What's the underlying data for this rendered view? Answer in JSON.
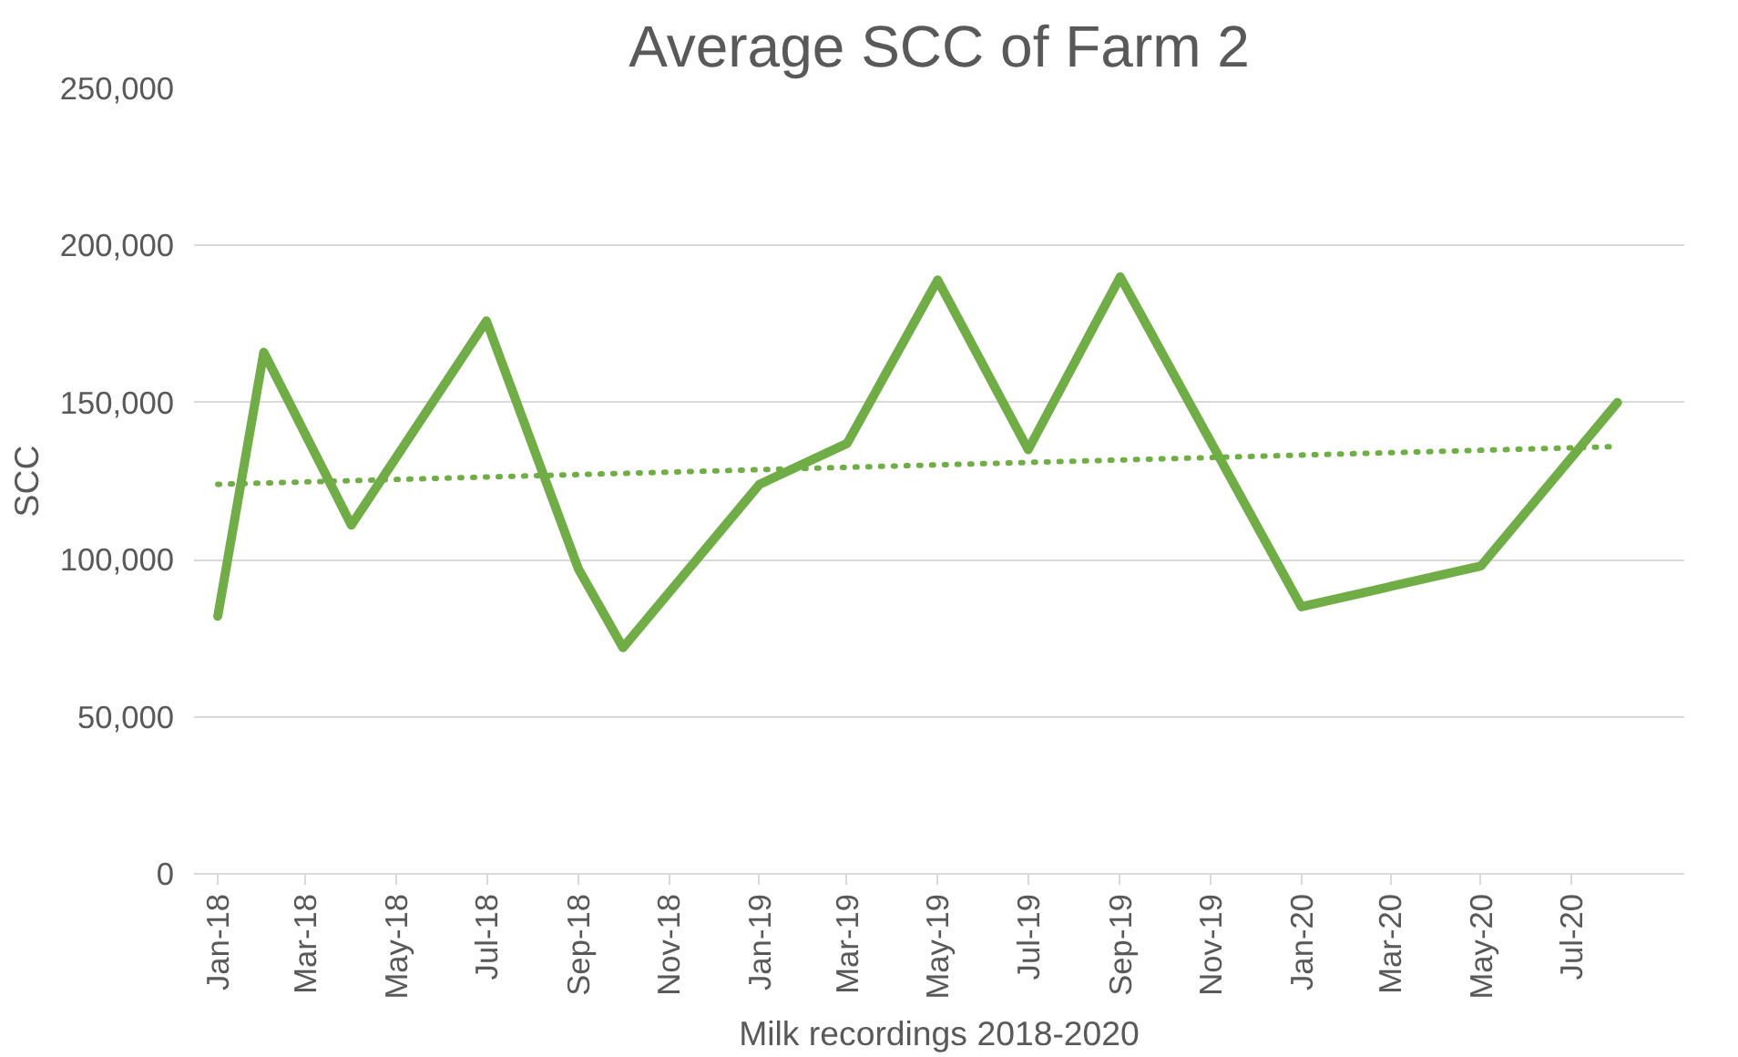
{
  "chart_data": {
    "type": "line",
    "title": "Average SCC of Farm 2",
    "xlabel": "Milk recordings 2018-2020",
    "ylabel": "SCC",
    "x": [
      "2018-01",
      "2018-02",
      "2018-04",
      "2018-07",
      "2018-09",
      "2018-10",
      "2019-01",
      "2019-03",
      "2019-05",
      "2019-07",
      "2019-09",
      "2020-01",
      "2020-05",
      "2020-08"
    ],
    "series": [
      {
        "color": "#70ad47",
        "line_style": "solid",
        "values": [
          82000,
          166000,
          111000,
          176000,
          97000,
          72000,
          124000,
          137000,
          189000,
          135000,
          190000,
          85000,
          98000,
          150000
        ]
      },
      {
        "color": "#70ad47",
        "line_style": "dotted",
        "x": [
          "2018-01",
          "2020-08"
        ],
        "values": [
          124000,
          136000
        ]
      }
    ],
    "xlim": [
      "2017-12-16",
      "2020-09-15"
    ],
    "xticks": [
      {
        "value": "2018-01",
        "label": "Jan-18"
      },
      {
        "value": "2018-03",
        "label": "Mar-18"
      },
      {
        "value": "2018-05",
        "label": "May-18"
      },
      {
        "value": "2018-07",
        "label": "Jul-18"
      },
      {
        "value": "2018-09",
        "label": "Sep-18"
      },
      {
        "value": "2018-11",
        "label": "Nov-18"
      },
      {
        "value": "2019-01",
        "label": "Jan-19"
      },
      {
        "value": "2019-03",
        "label": "Mar-19"
      },
      {
        "value": "2019-05",
        "label": "May-19"
      },
      {
        "value": "2019-07",
        "label": "Jul-19"
      },
      {
        "value": "2019-09",
        "label": "Sep-19"
      },
      {
        "value": "2019-11",
        "label": "Nov-19"
      },
      {
        "value": "2020-01",
        "label": "Jan-20"
      },
      {
        "value": "2020-03",
        "label": "Mar-20"
      },
      {
        "value": "2020-05",
        "label": "May-20"
      },
      {
        "value": "2020-07",
        "label": "Jul-20"
      }
    ],
    "ylim": [
      0,
      250000
    ],
    "yticks": [
      {
        "value": 0,
        "label": "0"
      },
      {
        "value": 50000,
        "label": "50,000"
      },
      {
        "value": 100000,
        "label": "100,000"
      },
      {
        "value": 150000,
        "label": "150,000"
      },
      {
        "value": 200000,
        "label": "200,000"
      },
      {
        "value": 250000,
        "label": "250,000"
      }
    ],
    "grid": "y",
    "marker": "none"
  }
}
